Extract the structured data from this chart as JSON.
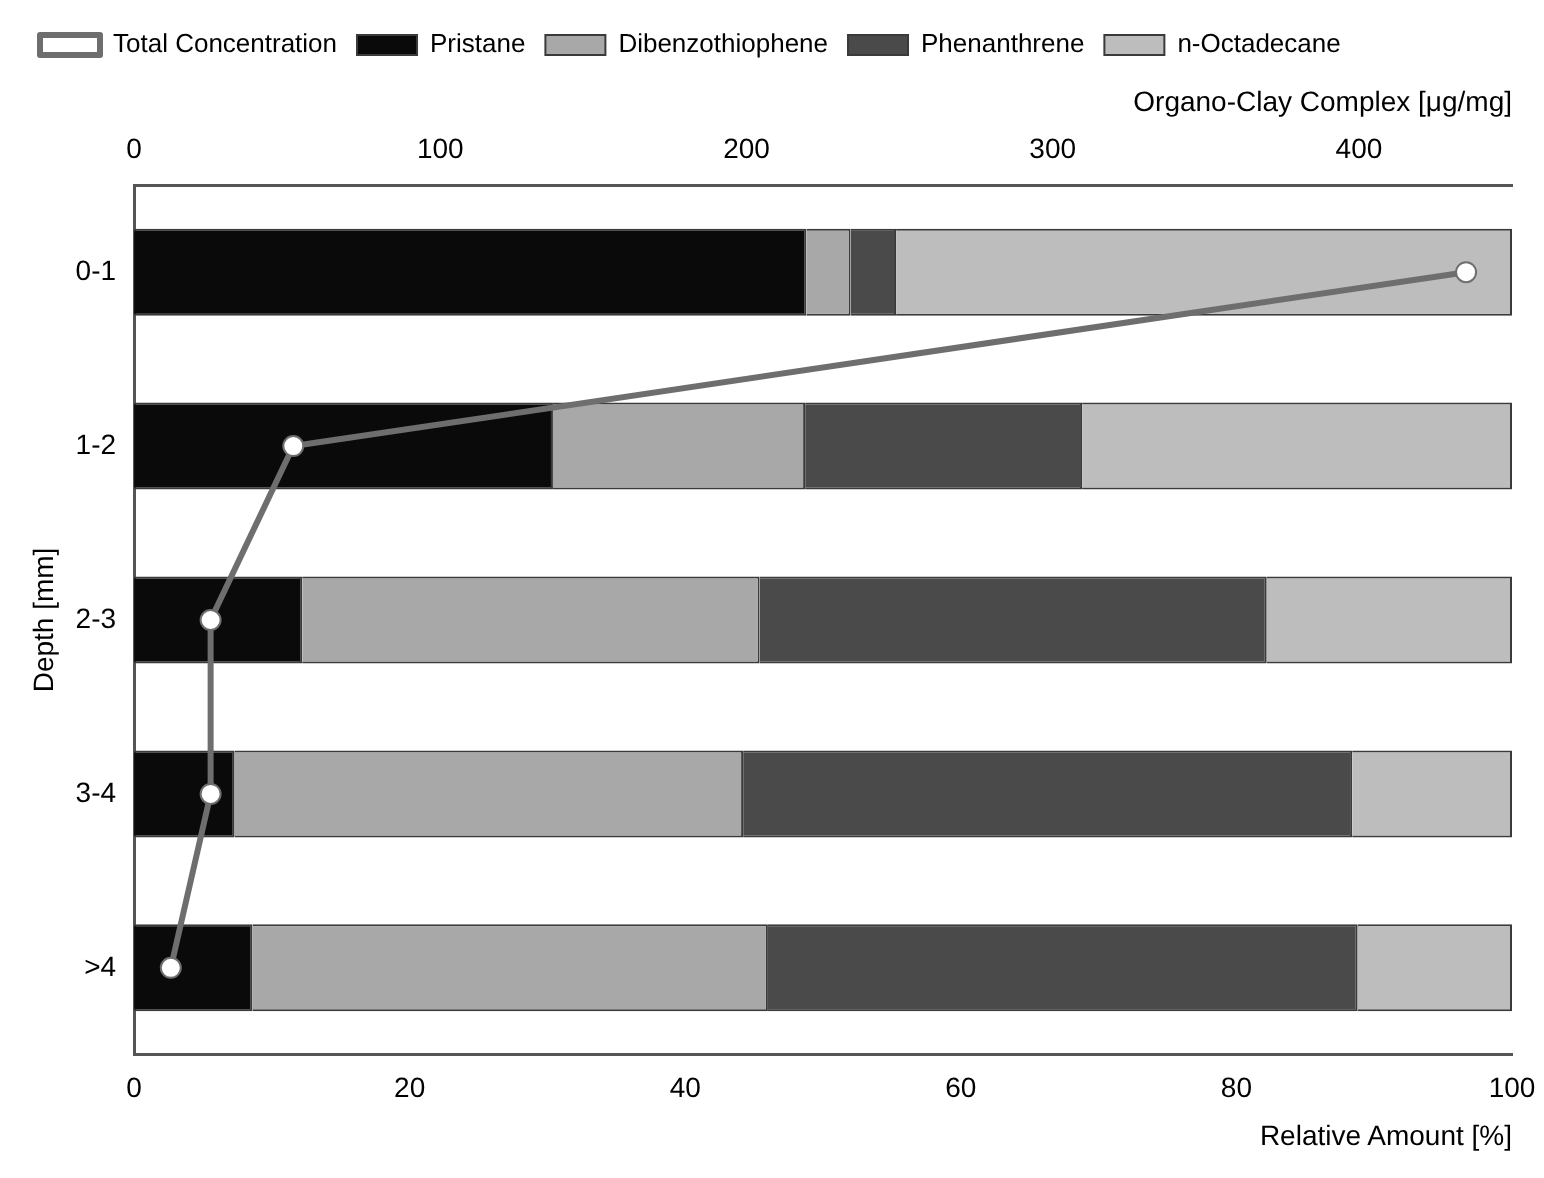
{
  "chart_data": {
    "type": "bar",
    "orientation": "horizontal",
    "stacked": true,
    "categories": [
      "0-1",
      "1-2",
      "2-3",
      "3-4",
      ">4"
    ],
    "series": [
      {
        "name": "Pristane",
        "color": "#0a0a0a",
        "values": [
          48.8,
          30.4,
          12.2,
          7.3,
          8.6
        ]
      },
      {
        "name": "Dibenzothiophene",
        "color": "#a8a8a8",
        "values": [
          3.2,
          18.3,
          33.2,
          36.9,
          37.4
        ]
      },
      {
        "name": "Phenanthrene",
        "color": "#4a4a4a",
        "values": [
          3.3,
          20.1,
          36.8,
          44.2,
          42.8
        ]
      },
      {
        "name": "n-Octadecane",
        "color": "#bdbdbd",
        "values": [
          44.7,
          31.2,
          17.8,
          11.6,
          11.2
        ]
      },
      {
        "name": "Total Concentration",
        "type": "line",
        "axis": "x2",
        "color": "#6e6e6e",
        "values": [
          435,
          52,
          25,
          25,
          12
        ]
      }
    ],
    "xlim": [
      0,
      100
    ],
    "xticks": [
      0,
      20,
      40,
      60,
      80,
      100
    ],
    "x2lim": [
      0,
      450
    ],
    "x2ticks": [
      0,
      100,
      200,
      300,
      400
    ],
    "xlabel": "Relative Amount [%]",
    "x2label": "Organo-Clay Complex [μg/mg]",
    "ylabel": "Depth [mm]",
    "grid": false,
    "legend": "top left",
    "marker": "circle",
    "line_style": "solid"
  }
}
